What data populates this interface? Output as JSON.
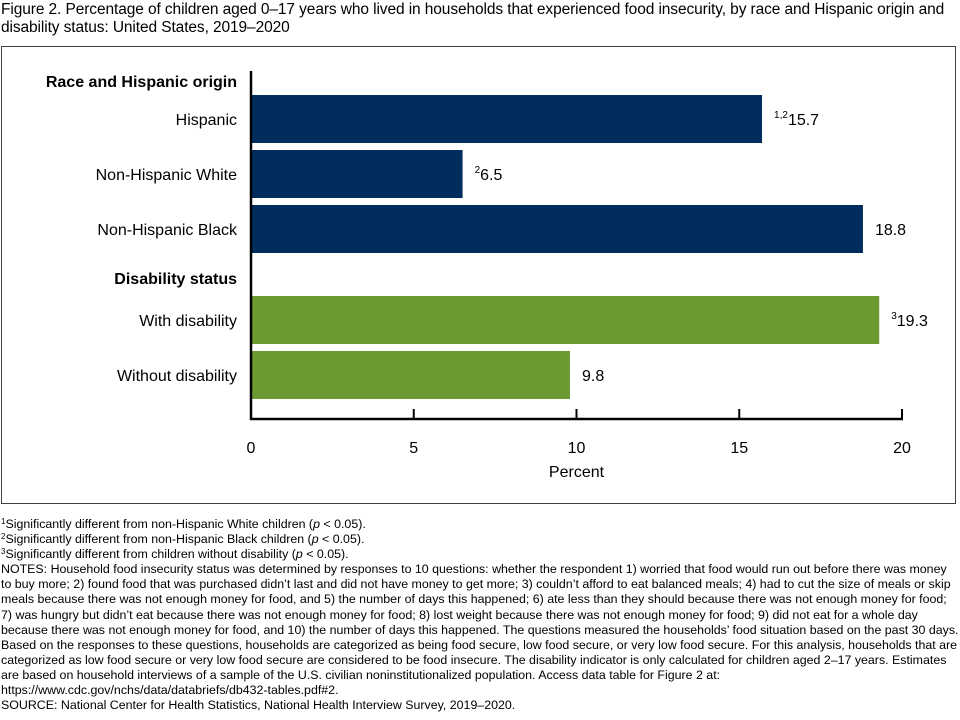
{
  "figure": {
    "title": "Figure 2. Percentage of children aged 0–17 years who lived in households that experienced food insecurity, by race and Hispanic origin and disability status: United States, 2019–2020"
  },
  "chart_data": {
    "type": "bar",
    "orientation": "horizontal",
    "title": "Figure 2. Percentage of children aged 0–17 years who lived in households that experienced food insecurity, by race and Hispanic origin and disability status: United States, 2019–2020",
    "xlabel": "Percent",
    "ylabel": "",
    "xlim": [
      0,
      20
    ],
    "xticks": [
      0,
      5,
      10,
      15,
      20
    ],
    "grid": false,
    "groups": [
      {
        "label": "Race and Hispanic origin",
        "color": "#002D5E",
        "categories": [
          {
            "label": "Hispanic",
            "value": 15.7,
            "display": "15.7",
            "sup": "1,2"
          },
          {
            "label": "Non-Hispanic White",
            "value": 6.5,
            "display": "6.5",
            "sup": "2"
          },
          {
            "label": "Non-Hispanic Black",
            "value": 18.8,
            "display": "18.8",
            "sup": ""
          }
        ]
      },
      {
        "label": "Disability status",
        "color": "#6B9A32",
        "categories": [
          {
            "label": "With disability",
            "value": 19.3,
            "display": "19.3",
            "sup": "3"
          },
          {
            "label": "Without disability",
            "value": 9.8,
            "display": "9.8",
            "sup": ""
          }
        ]
      }
    ]
  },
  "footnotes": [
    {
      "sup": "1",
      "text_before": "Significantly different from non-Hispanic White children (",
      "italic": "p",
      "text_after": " < 0.05)."
    },
    {
      "sup": "2",
      "text_before": "Significantly different from non-Hispanic Black children (",
      "italic": "p",
      "text_after": " < 0.05)."
    },
    {
      "sup": "3",
      "text_before": "Significantly different from children without disability (",
      "italic": "p",
      "text_after": " < 0.05)."
    }
  ],
  "notes": "NOTES: Household food insecurity status was determined by responses to 10 questions: whether the respondent 1) worried that food would run out before there was money to buy more; 2) found food that was purchased didn’t last and did not have money to get more; 3) couldn’t afford to eat balanced meals; 4) had to cut the size of meals or skip meals because there was not enough money for food, and 5) the number of days this happened; 6) ate less than they should because there was not enough money for food; 7) was hungry but didn’t eat because there was not enough money for food; 8) lost weight because there was not enough money for food; 9) did not eat for a whole day because there was not enough money for food, and 10) the number of days this happened. The questions measured the households’ food situation based on the past 30 days. Based on the responses to these questions, households are categorized as being food secure, low food secure, or very low food secure. For this analysis, households that are categorized as low food secure or very low food secure are considered to be food insecure. The disability indicator is only calculated for children aged 2–17 years. Estimates are based on household interviews of a sample of the U.S. civilian noninstitutionalized population. Access data table for Figure 2 at: https://www.cdc.gov/nchs/data/databriefs/db432-tables.pdf#2.",
  "source": "SOURCE: National Center for Health Statistics, National Health Interview Survey, 2019–2020."
}
